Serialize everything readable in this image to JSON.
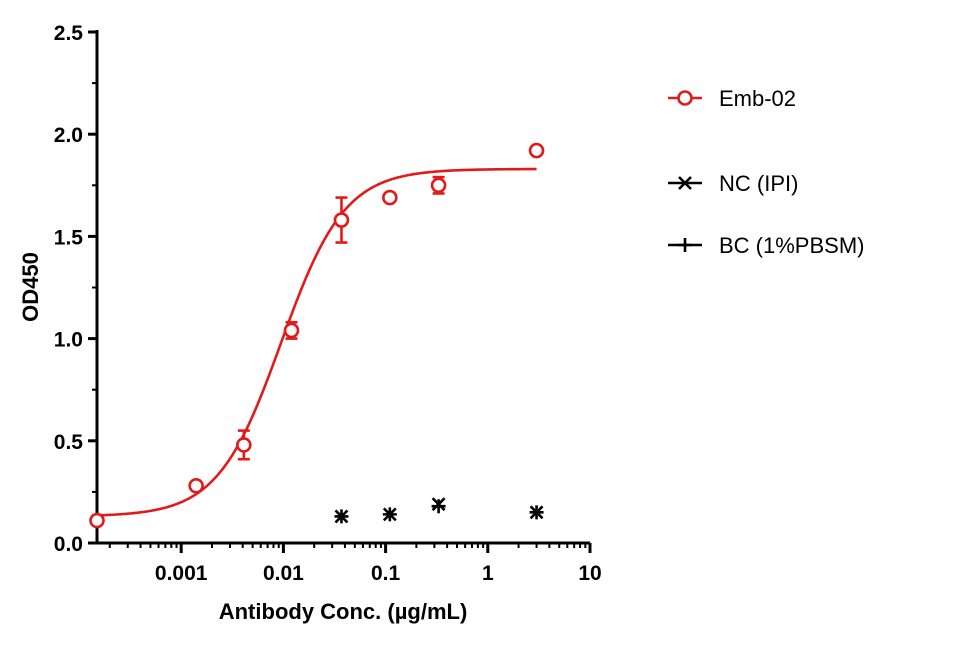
{
  "chart_data": {
    "type": "scatter",
    "xlabel": "Antibody Conc. (µg/mL)",
    "ylabel": "OD450",
    "xscale": "log",
    "xlim": [
      0.00015,
      10
    ],
    "ylim": [
      0,
      2.5
    ],
    "x_tick_values": [
      0.001,
      0.01,
      0.1,
      1,
      10
    ],
    "x_tick_labels": [
      "0.001",
      "0.01",
      "0.1",
      "1",
      "10"
    ],
    "y_tick_values": [
      0,
      0.5,
      1.0,
      1.5,
      2.0,
      2.5
    ],
    "y_tick_labels": [
      "0.0",
      "0.5",
      "1.0",
      "1.5",
      "2.0",
      "2.5"
    ],
    "legend_position": "right",
    "series": [
      {
        "name": "Emb-02",
        "marker": "circle",
        "color": "#e31a1c",
        "x": [
          0.00015,
          0.0014,
          0.0041,
          0.012,
          0.037,
          0.11,
          0.33,
          3.0
        ],
        "y": [
          0.11,
          0.28,
          0.48,
          1.04,
          1.58,
          1.69,
          1.75,
          1.92
        ],
        "error": [
          0,
          0,
          0.07,
          0.04,
          0.11,
          0,
          0.04,
          0
        ],
        "fit": {
          "type": "4PL",
          "bottom": 0.13,
          "top": 1.83,
          "ec50": 0.0095,
          "hill": 1.4
        }
      },
      {
        "name": "NC (IPI)",
        "marker": "x",
        "color": "#000000",
        "x": [
          0.037,
          0.11,
          0.33,
          3.0
        ],
        "y": [
          0.13,
          0.14,
          0.19,
          0.15
        ]
      },
      {
        "name": "BC (1%PBSM)",
        "marker": "plus",
        "color": "#000000",
        "x": [
          0.037,
          0.11,
          0.33,
          3.0
        ],
        "y": [
          0.13,
          0.14,
          0.18,
          0.15
        ]
      }
    ]
  }
}
